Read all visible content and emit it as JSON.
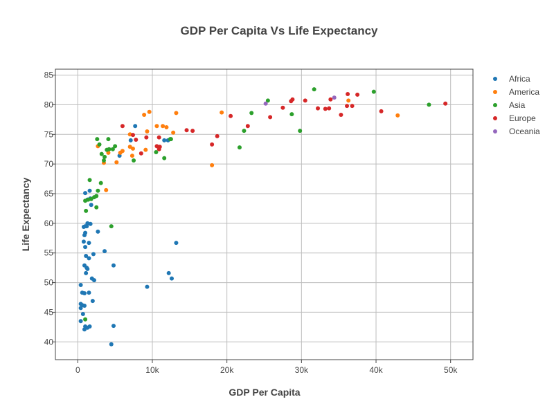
{
  "chart_data": {
    "type": "scatter",
    "title": "GDP Per Capita Vs Life Expectancy",
    "xlabel": "GDP Per Capita",
    "ylabel": "Life Expectancy",
    "xlim": [
      -3000,
      53000
    ],
    "ylim": [
      37,
      86
    ],
    "xticks": [
      0,
      10000,
      20000,
      30000,
      40000,
      50000
    ],
    "xtick_labels": [
      "0",
      "10k",
      "20k",
      "30k",
      "40k",
      "50k"
    ],
    "yticks": [
      40,
      45,
      50,
      55,
      60,
      65,
      70,
      75,
      80,
      85
    ],
    "ytick_labels": [
      "40",
      "45",
      "50",
      "55",
      "60",
      "65",
      "70",
      "75",
      "80",
      "85"
    ],
    "grid": true,
    "legend_position": "right",
    "series": [
      {
        "name": "Africa",
        "color": "#1f77b4",
        "points": [
          [
            7700,
            76.4
          ],
          [
            4800,
            42.7
          ],
          [
            12600,
            50.7
          ],
          [
            13200,
            56.7
          ],
          [
            12200,
            51.6
          ],
          [
            9300,
            49.3
          ],
          [
            4500,
            39.6
          ],
          [
            4800,
            52.9
          ],
          [
            3600,
            55.3
          ],
          [
            2000,
            46.9
          ],
          [
            2200,
            50.4
          ],
          [
            1900,
            50.7
          ],
          [
            1500,
            48.3
          ],
          [
            1300,
            52.3
          ],
          [
            1100,
            51.6
          ],
          [
            1200,
            52.5
          ],
          [
            900,
            52.9
          ],
          [
            1100,
            54.5
          ],
          [
            1500,
            54.1
          ],
          [
            2100,
            54.8
          ],
          [
            1500,
            56.7
          ],
          [
            1000,
            56.0
          ],
          [
            800,
            56.9
          ],
          [
            900,
            58.0
          ],
          [
            1000,
            58.4
          ],
          [
            2700,
            58.6
          ],
          [
            800,
            59.4
          ],
          [
            1000,
            59.5
          ],
          [
            1200,
            59.5
          ],
          [
            1300,
            60.0
          ],
          [
            1700,
            59.9
          ],
          [
            1800,
            63.1
          ],
          [
            1700,
            64.2
          ],
          [
            1600,
            65.5
          ],
          [
            1000,
            65.1
          ],
          [
            1300,
            64.0
          ],
          [
            400,
            49.6
          ],
          [
            400,
            46.4
          ],
          [
            600,
            46.2
          ],
          [
            900,
            46.1
          ],
          [
            400,
            45.7
          ],
          [
            700,
            44.7
          ],
          [
            400,
            43.5
          ],
          [
            1000,
            42.6
          ],
          [
            900,
            42.1
          ],
          [
            1300,
            42.4
          ],
          [
            1600,
            42.6
          ],
          [
            900,
            48.2
          ],
          [
            600,
            48.3
          ],
          [
            12100,
            74.0
          ],
          [
            11600,
            74.0
          ],
          [
            7100,
            74.0
          ],
          [
            5600,
            71.4
          ]
        ]
      },
      {
        "name": "America",
        "color": "#ff7f0e",
        "points": [
          [
            12800,
            75.3
          ],
          [
            3800,
            65.6
          ],
          [
            9100,
            72.4
          ],
          [
            36300,
            80.7
          ],
          [
            13200,
            78.6
          ],
          [
            7000,
            72.9
          ],
          [
            9600,
            78.8
          ],
          [
            8900,
            78.3
          ],
          [
            6000,
            72.2
          ],
          [
            7000,
            75.0
          ],
          [
            5700,
            71.9
          ],
          [
            5200,
            70.3
          ],
          [
            2700,
            73.0
          ],
          [
            3500,
            70.2
          ],
          [
            11900,
            76.2
          ],
          [
            4100,
            71.9
          ],
          [
            10600,
            76.4
          ],
          [
            7400,
            72.6
          ],
          [
            7300,
            71.4
          ],
          [
            18000,
            69.8
          ],
          [
            19300,
            78.7
          ],
          [
            42900,
            78.2
          ],
          [
            11400,
            76.4
          ],
          [
            9300,
            75.5
          ]
        ]
      },
      {
        "name": "Asia",
        "color": "#2ca02c",
        "points": [
          [
            1000,
            43.8
          ],
          [
            4500,
            59.5
          ],
          [
            2500,
            62.7
          ],
          [
            1800,
            64.1
          ],
          [
            1100,
            62.1
          ],
          [
            1400,
            64.0
          ],
          [
            1600,
            67.3
          ],
          [
            2700,
            65.5
          ],
          [
            2500,
            64.6
          ],
          [
            1000,
            63.8
          ],
          [
            2200,
            64.4
          ],
          [
            3100,
            66.8
          ],
          [
            4200,
            72.5
          ],
          [
            5000,
            73.0
          ],
          [
            3900,
            72.4
          ],
          [
            4700,
            72.5
          ],
          [
            2600,
            74.2
          ],
          [
            2900,
            73.3
          ],
          [
            3200,
            71.7
          ],
          [
            3600,
            71.2
          ],
          [
            4100,
            74.2
          ],
          [
            3500,
            70.6
          ],
          [
            7500,
            70.6
          ],
          [
            10500,
            72.0
          ],
          [
            11600,
            71.0
          ],
          [
            12400,
            74.2
          ],
          [
            22300,
            75.6
          ],
          [
            23300,
            78.6
          ],
          [
            25500,
            80.7
          ],
          [
            28700,
            78.4
          ],
          [
            29800,
            75.6
          ],
          [
            31700,
            82.6
          ],
          [
            39700,
            82.2
          ],
          [
            47100,
            80.0
          ],
          [
            21700,
            72.8
          ],
          [
            12500,
            74.2
          ]
        ]
      },
      {
        "name": "Europe",
        "color": "#d62728",
        "points": [
          [
            6000,
            76.4
          ],
          [
            7400,
            74.9
          ],
          [
            9200,
            74.5
          ],
          [
            7800,
            74.1
          ],
          [
            8500,
            71.8
          ],
          [
            10600,
            73.0
          ],
          [
            10900,
            72.5
          ],
          [
            11000,
            72.9
          ],
          [
            14600,
            75.7
          ],
          [
            15400,
            75.6
          ],
          [
            18000,
            73.3
          ],
          [
            18700,
            74.7
          ],
          [
            20500,
            78.1
          ],
          [
            22800,
            76.4
          ],
          [
            25800,
            77.9
          ],
          [
            27500,
            79.5
          ],
          [
            28600,
            80.6
          ],
          [
            28800,
            80.9
          ],
          [
            30500,
            80.7
          ],
          [
            32200,
            79.4
          ],
          [
            33200,
            79.3
          ],
          [
            33700,
            79.4
          ],
          [
            33900,
            80.9
          ],
          [
            35300,
            78.3
          ],
          [
            36100,
            79.8
          ],
          [
            36200,
            81.8
          ],
          [
            36800,
            79.8
          ],
          [
            37500,
            81.7
          ],
          [
            40700,
            78.9
          ],
          [
            49300,
            80.2
          ],
          [
            10900,
            74.5
          ]
        ]
      },
      {
        "name": "Oceania",
        "color": "#9467bd",
        "points": [
          [
            25200,
            80.2
          ],
          [
            34400,
            81.2
          ]
        ]
      }
    ]
  }
}
